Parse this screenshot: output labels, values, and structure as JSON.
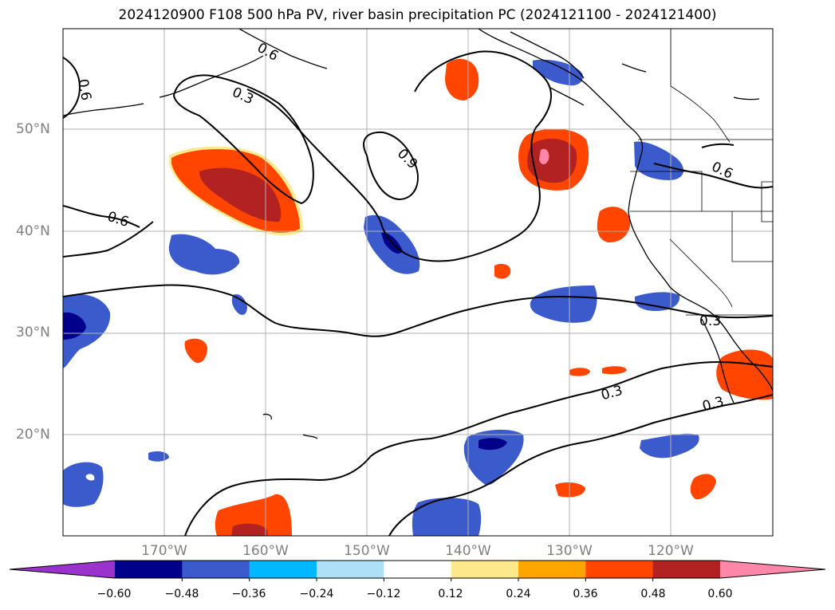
{
  "title": "2024120900 F108 500 hPa PV, river basin precipitation PC (2024121100 - 2024121400)",
  "lat_labels": [
    "50°N",
    "40°N",
    "30°N",
    "20°N"
  ],
  "lon_labels": [
    "170°W",
    "160°W",
    "150°W",
    "140°W",
    "130°W",
    "120°W"
  ],
  "contour_labels": [
    "0.6",
    "0.3",
    "0.9",
    "0.6",
    "0.6",
    "0.6",
    "0.3",
    "0.3",
    "0.3"
  ],
  "colorbar": {
    "colors": [
      "#9933cc",
      "#00008b",
      "#3b5bcc",
      "#00b8ff",
      "#aee0f8",
      "#ffffff",
      "#fde98c",
      "#ffa500",
      "#ff4500",
      "#b22222",
      "#ff88aa"
    ],
    "tick_labels": [
      "−0.60",
      "−0.48",
      "−0.36",
      "−0.24",
      "−0.12",
      "0.12",
      "0.24",
      "0.36",
      "0.48",
      "0.60"
    ]
  }
}
